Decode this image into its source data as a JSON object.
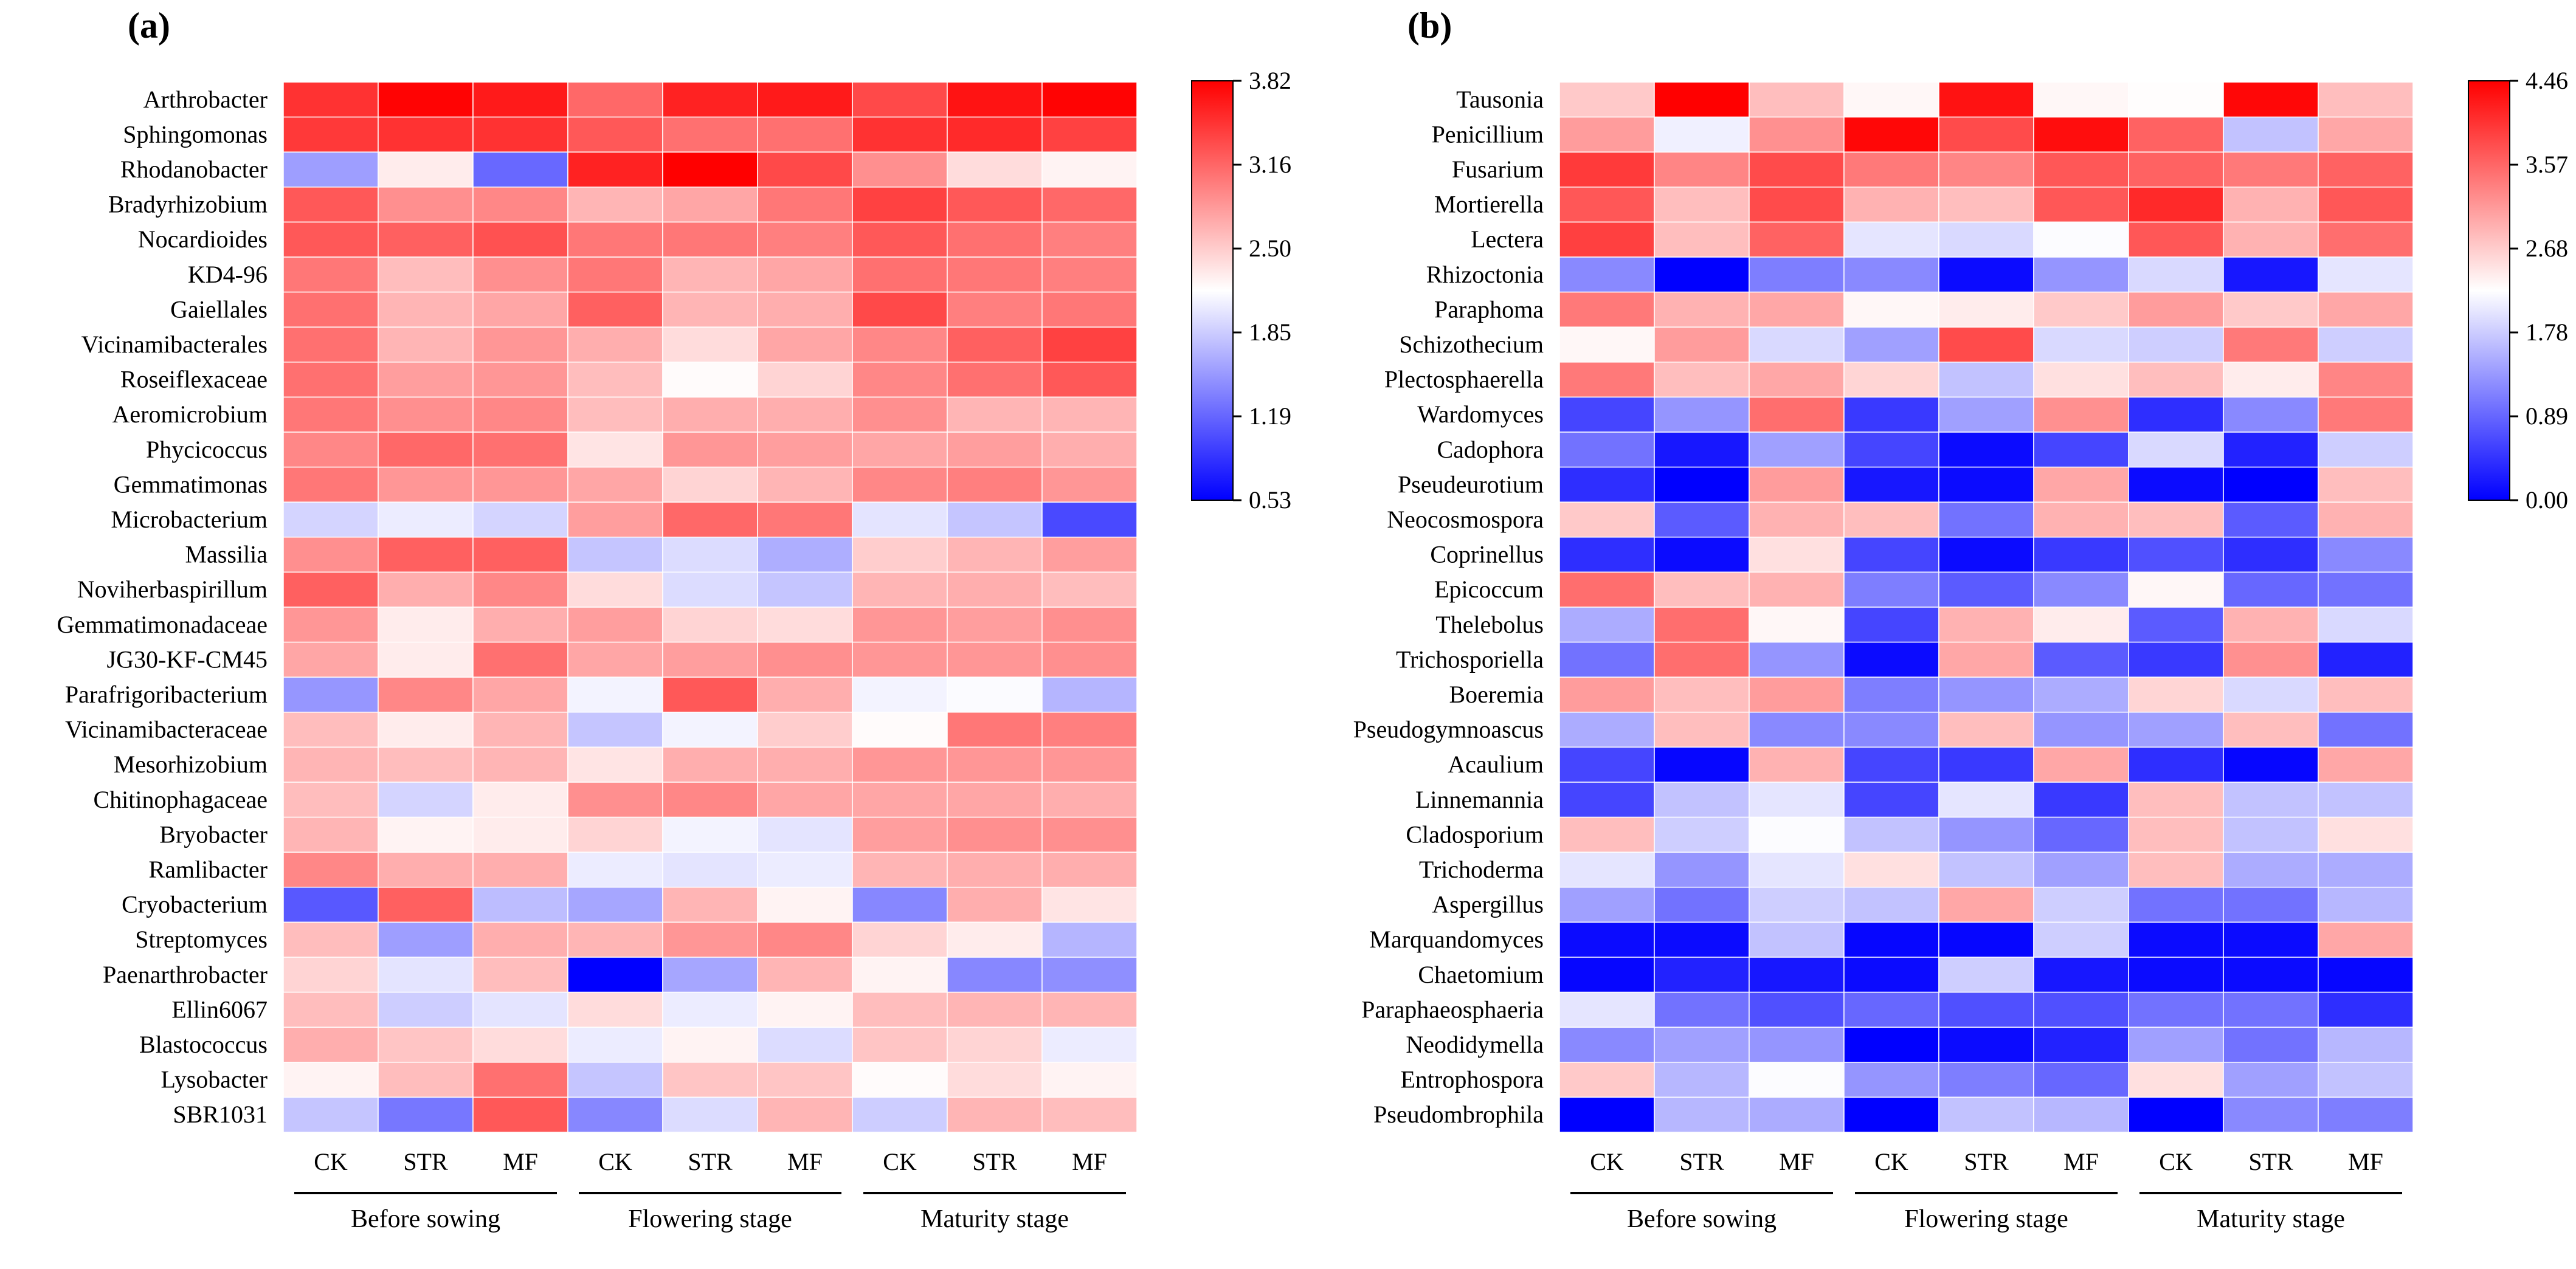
{
  "chart_data": [
    {
      "type": "heatmap",
      "panel_label": "(a)",
      "columns": [
        "CK",
        "STR",
        "MF",
        "CK",
        "STR",
        "MF",
        "CK",
        "STR",
        "MF"
      ],
      "groups": [
        {
          "label": "Before sowing",
          "start": 0,
          "end": 2
        },
        {
          "label": "Flowering stage",
          "start": 3,
          "end": 5
        },
        {
          "label": "Maturity stage",
          "start": 6,
          "end": 8
        }
      ],
      "rows": [
        "Arthrobacter",
        "Sphingomonas",
        "Rhodanobacter",
        "Bradyrhizobium",
        "Nocardioides",
        "KD4-96",
        "Gaiellales",
        "Vicinamibacterales",
        "Roseiflexaceae",
        "Aeromicrobium",
        "Phycicoccus",
        "Gemmatimonas",
        "Microbacterium",
        "Massilia",
        "Noviherbaspirillum",
        "Gemmatimonadaceae",
        "JG30-KF-CM45",
        "Parafrigoribacterium",
        "Vicinamibacteraceae",
        "Mesorhizobium",
        "Chitinophagaceae",
        "Bryobacter",
        "Ramlibacter",
        "Cryobacterium",
        "Streptomyces",
        "Paenarthrobacter",
        "Ellin6067",
        "Blastococcus",
        "Lysobacter",
        "SBR1031"
      ],
      "values": [
        [
          3.5,
          3.8,
          3.65,
          3.15,
          3.6,
          3.65,
          3.35,
          3.7,
          3.8
        ],
        [
          3.45,
          3.5,
          3.5,
          3.25,
          3.1,
          3.1,
          3.5,
          3.55,
          3.4
        ],
        [
          1.55,
          2.3,
          1.2,
          3.6,
          3.82,
          3.35,
          2.9,
          2.4,
          2.25
        ],
        [
          3.25,
          2.9,
          2.95,
          2.65,
          2.75,
          3.05,
          3.4,
          3.25,
          3.15
        ],
        [
          3.25,
          3.2,
          3.3,
          3.05,
          3.05,
          3.0,
          3.25,
          3.1,
          3.0
        ],
        [
          3.05,
          2.6,
          2.9,
          3.05,
          2.65,
          2.75,
          3.1,
          3.05,
          3.0
        ],
        [
          3.1,
          2.65,
          2.75,
          3.2,
          2.65,
          2.7,
          3.35,
          3.0,
          3.05
        ],
        [
          3.1,
          2.65,
          2.85,
          2.7,
          2.4,
          2.75,
          2.95,
          3.2,
          3.4
        ],
        [
          3.1,
          2.8,
          2.85,
          2.6,
          2.2,
          2.45,
          2.95,
          3.1,
          3.25
        ],
        [
          3.05,
          2.9,
          2.95,
          2.6,
          2.7,
          2.7,
          2.9,
          2.65,
          2.65
        ],
        [
          2.95,
          3.15,
          3.1,
          2.35,
          2.85,
          2.8,
          2.75,
          2.8,
          2.7
        ],
        [
          3.05,
          2.85,
          2.85,
          2.75,
          2.45,
          2.65,
          2.95,
          3.0,
          2.85
        ],
        [
          1.9,
          2.05,
          1.9,
          2.8,
          3.15,
          3.05,
          2.0,
          1.8,
          1.0
        ],
        [
          2.9,
          3.2,
          3.2,
          1.8,
          1.95,
          1.65,
          2.5,
          2.65,
          2.8
        ],
        [
          3.2,
          2.7,
          2.95,
          2.4,
          1.95,
          1.8,
          2.65,
          2.7,
          2.6
        ],
        [
          2.85,
          2.3,
          2.7,
          2.8,
          2.45,
          2.4,
          2.85,
          2.8,
          2.9
        ],
        [
          2.75,
          2.3,
          3.1,
          2.75,
          2.8,
          2.9,
          2.85,
          2.85,
          2.9
        ],
        [
          1.5,
          2.95,
          2.75,
          2.1,
          3.25,
          2.7,
          2.1,
          2.15,
          1.7
        ],
        [
          2.6,
          2.3,
          2.65,
          1.8,
          2.1,
          2.5,
          2.2,
          3.05,
          3.0
        ],
        [
          2.65,
          2.6,
          2.65,
          2.35,
          2.7,
          2.7,
          2.85,
          2.85,
          2.85
        ],
        [
          2.6,
          1.9,
          2.3,
          2.9,
          2.95,
          2.75,
          2.75,
          2.75,
          2.7
        ],
        [
          2.65,
          2.25,
          2.3,
          2.45,
          2.1,
          2.0,
          2.8,
          2.9,
          2.9
        ],
        [
          2.95,
          2.7,
          2.7,
          2.05,
          2.0,
          2.05,
          2.65,
          2.7,
          2.7
        ],
        [
          1.1,
          3.2,
          1.75,
          1.6,
          2.65,
          2.25,
          1.4,
          2.7,
          2.35
        ],
        [
          2.6,
          1.55,
          2.7,
          2.65,
          2.85,
          2.95,
          2.45,
          2.3,
          1.7
        ],
        [
          2.45,
          2.0,
          2.6,
          0.53,
          1.6,
          2.65,
          2.25,
          1.4,
          1.45
        ],
        [
          2.6,
          1.85,
          2.0,
          2.4,
          2.05,
          2.25,
          2.6,
          2.65,
          2.65
        ],
        [
          2.7,
          2.55,
          2.4,
          2.05,
          2.25,
          1.95,
          2.55,
          2.45,
          2.05
        ],
        [
          2.25,
          2.6,
          3.1,
          1.8,
          2.55,
          2.55,
          2.2,
          2.4,
          2.25
        ],
        [
          1.8,
          1.3,
          3.25,
          1.4,
          1.95,
          2.65,
          1.85,
          2.65,
          2.6
        ]
      ],
      "colorbar": {
        "min": 0.53,
        "max": 3.82,
        "ticks": [
          "3.82",
          "3.16",
          "2.50",
          "1.85",
          "1.19",
          "0.53"
        ]
      }
    },
    {
      "type": "heatmap",
      "panel_label": "(b)",
      "columns": [
        "CK",
        "STR",
        "MF",
        "CK",
        "STR",
        "MF",
        "CK",
        "STR",
        "MF"
      ],
      "groups": [
        {
          "label": "Before sowing",
          "start": 0,
          "end": 2
        },
        {
          "label": "Flowering stage",
          "start": 3,
          "end": 5
        },
        {
          "label": "Maturity stage",
          "start": 6,
          "end": 8
        }
      ],
      "rows": [
        "Tausonia",
        "Penicillium",
        "Fusarium",
        "Mortierella",
        "Lectera",
        "Rhizoctonia",
        "Paraphoma",
        "Schizothecium",
        "Plectosphaerella",
        "Wardomyces",
        "Cadophora",
        "Pseudeurotium",
        "Neocosmospora",
        "Coprinellus",
        "Epicoccum",
        "Thelebolus",
        "Trichosporiella",
        "Boeremia",
        "Pseudogymnoascus",
        "Acaulium",
        "Linnemannia",
        "Cladosporium",
        "Trichoderma",
        "Aspergillus",
        "Marquandomyces",
        "Chaetomium",
        "Paraphaeosphaeria",
        "Neodidymella",
        "Entrophospora",
        "Pseudombrophila"
      ],
      "values": [
        [
          2.7,
          4.46,
          2.8,
          2.3,
          4.3,
          2.3,
          2.25,
          4.4,
          2.8
        ],
        [
          3.1,
          2.1,
          3.2,
          4.4,
          3.8,
          4.35,
          3.6,
          1.7,
          3.0
        ],
        [
          3.95,
          3.3,
          3.8,
          3.4,
          3.3,
          3.7,
          3.6,
          3.4,
          3.6
        ],
        [
          3.7,
          2.8,
          3.8,
          2.9,
          2.8,
          3.7,
          4.1,
          2.9,
          3.7
        ],
        [
          3.9,
          2.8,
          3.6,
          2.0,
          1.9,
          2.2,
          3.7,
          2.9,
          3.5
        ],
        [
          1.2,
          0.0,
          1.1,
          1.2,
          0.1,
          1.3,
          1.9,
          0.2,
          2.0
        ],
        [
          3.4,
          2.9,
          3.0,
          2.3,
          2.4,
          2.7,
          3.1,
          2.7,
          3.0
        ],
        [
          2.3,
          3.1,
          1.9,
          1.4,
          3.8,
          1.9,
          1.8,
          3.4,
          1.8
        ],
        [
          3.4,
          2.8,
          3.0,
          2.6,
          1.7,
          2.5,
          2.8,
          2.4,
          3.3
        ],
        [
          0.6,
          1.3,
          3.5,
          0.5,
          1.4,
          3.2,
          0.4,
          1.2,
          3.4
        ],
        [
          1.0,
          0.2,
          1.4,
          0.6,
          0.1,
          0.6,
          1.9,
          0.3,
          1.8
        ],
        [
          0.4,
          0.0,
          3.1,
          0.2,
          0.1,
          3.0,
          0.1,
          0.0,
          2.8
        ],
        [
          2.7,
          0.8,
          2.9,
          2.8,
          1.0,
          2.9,
          2.8,
          0.8,
          2.9
        ],
        [
          0.4,
          0.1,
          2.5,
          0.6,
          0.1,
          0.5,
          0.7,
          0.4,
          1.2
        ],
        [
          3.5,
          2.8,
          2.9,
          1.1,
          0.8,
          1.2,
          2.3,
          0.9,
          1.0
        ],
        [
          1.5,
          3.5,
          2.3,
          0.6,
          2.9,
          2.4,
          0.8,
          2.9,
          1.9
        ],
        [
          1.0,
          3.5,
          1.3,
          0.1,
          3.0,
          0.8,
          0.5,
          3.2,
          0.3
        ],
        [
          3.1,
          2.8,
          3.1,
          1.1,
          1.3,
          1.5,
          2.6,
          1.9,
          2.8
        ],
        [
          1.5,
          2.8,
          1.2,
          1.2,
          2.8,
          1.3,
          1.4,
          2.8,
          1.0
        ],
        [
          0.6,
          0.05,
          2.9,
          0.6,
          0.5,
          3.0,
          0.4,
          0.05,
          3.0
        ],
        [
          0.6,
          1.7,
          2.0,
          0.6,
          2.0,
          0.5,
          2.8,
          1.7,
          1.7
        ],
        [
          2.8,
          1.8,
          2.2,
          1.7,
          1.3,
          0.9,
          2.8,
          1.7,
          2.5
        ],
        [
          2.0,
          1.3,
          2.0,
          2.5,
          1.7,
          1.4,
          2.8,
          1.5,
          1.5
        ],
        [
          1.4,
          1.0,
          1.8,
          1.7,
          3.0,
          1.8,
          1.0,
          1.0,
          1.6
        ],
        [
          0.1,
          0.1,
          1.7,
          0.05,
          0.05,
          1.8,
          0.1,
          0.1,
          3.0
        ],
        [
          0.05,
          0.3,
          0.2,
          0.1,
          1.8,
          0.2,
          0.1,
          0.1,
          0.05
        ],
        [
          2.0,
          1.0,
          0.7,
          0.9,
          0.7,
          0.7,
          1.0,
          1.0,
          0.4
        ],
        [
          1.2,
          1.4,
          1.3,
          0.0,
          0.1,
          0.3,
          1.4,
          1.0,
          1.6
        ],
        [
          2.7,
          1.6,
          2.2,
          1.3,
          1.1,
          0.9,
          2.5,
          1.4,
          1.7
        ],
        [
          0.0,
          1.6,
          1.5,
          0.0,
          1.7,
          1.6,
          0.0,
          1.2,
          1.1
        ]
      ],
      "colorbar": {
        "min": 0.0,
        "max": 4.46,
        "ticks": [
          "4.46",
          "3.57",
          "2.68",
          "1.78",
          "0.89",
          "0.00"
        ]
      }
    }
  ]
}
